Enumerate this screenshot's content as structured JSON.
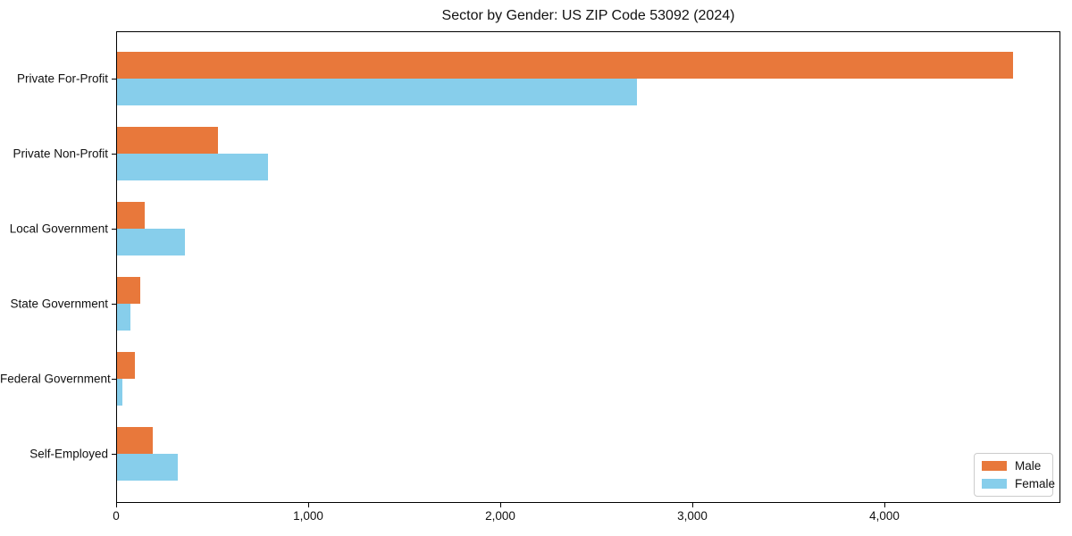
{
  "title": "Sector by Gender: US ZIP Code 53092 (2024)",
  "chart_data": {
    "type": "bar",
    "orientation": "horizontal",
    "title": "Sector by Gender: US ZIP Code 53092 (2024)",
    "categories": [
      "Private For-Profit",
      "Private Non-Profit",
      "Local Government",
      "State Government",
      "Federal Government",
      "Self-Employed"
    ],
    "series": [
      {
        "name": "Male",
        "color": "#e8783b",
        "values": [
          4665,
          525,
          145,
          120,
          95,
          185
        ]
      },
      {
        "name": "Female",
        "color": "#87ceeb",
        "values": [
          2705,
          785,
          355,
          70,
          30,
          315
        ]
      }
    ],
    "xlabel": "",
    "ylabel": "",
    "xlim": [
      0,
      4905
    ],
    "xticks": [
      0,
      1000,
      2000,
      3000,
      4000
    ],
    "xtick_labels": [
      "0",
      "1,000",
      "2,000",
      "3,000",
      "4,000"
    ],
    "grid": false,
    "legend": {
      "position": "lower right",
      "items": [
        "Male",
        "Female"
      ]
    }
  },
  "colors": {
    "axis": "#000000",
    "legend_border": "#cccccc",
    "text": "#111111",
    "background": "#ffffff"
  }
}
